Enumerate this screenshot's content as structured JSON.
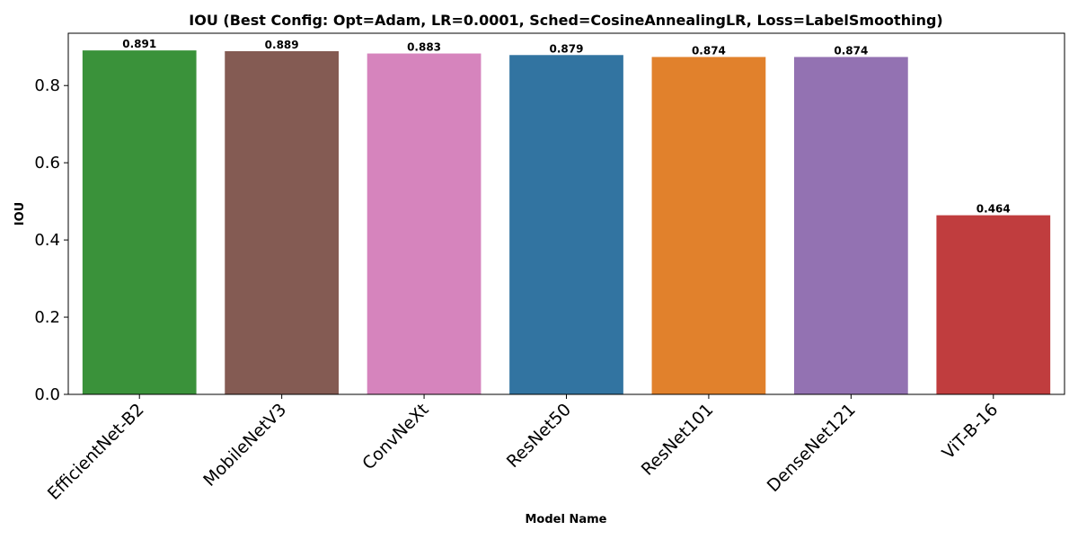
{
  "chart_data": {
    "type": "bar",
    "title": "IOU (Best Config: Opt=Adam, LR=0.0001, Sched=CosineAnnealingLR, Loss=LabelSmoothing)",
    "xlabel": "Model Name",
    "ylabel": "IOU",
    "categories": [
      "EfficientNet-B2",
      "MobileNetV3",
      "ConvNeXt",
      "ResNet50",
      "ResNet101",
      "DenseNet121",
      "ViT-B-16"
    ],
    "values": [
      0.891,
      0.889,
      0.883,
      0.879,
      0.874,
      0.874,
      0.464
    ],
    "value_labels": [
      "0.891",
      "0.889",
      "0.883",
      "0.879",
      "0.874",
      "0.874",
      "0.464"
    ],
    "colors": [
      "#3a923a",
      "#845b53",
      "#d684bd",
      "#3274a1",
      "#e1812c",
      "#9372b2",
      "#c03d3e"
    ],
    "yticks": [
      "0.0",
      "0.2",
      "0.4",
      "0.6",
      "0.8"
    ],
    "ytick_values": [
      0.0,
      0.2,
      0.4,
      0.6,
      0.8
    ],
    "ylim": [
      0,
      0.9355
    ],
    "grid": false,
    "legend": "none"
  }
}
